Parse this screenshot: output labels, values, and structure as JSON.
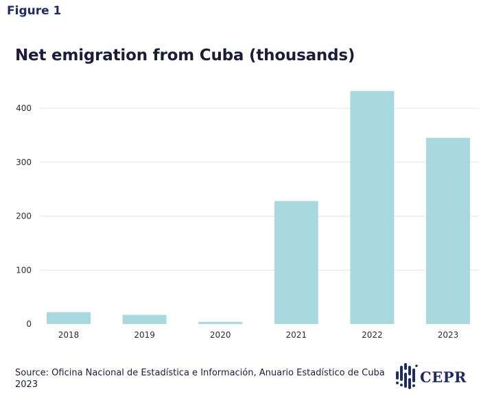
{
  "figure_label": "Figure 1",
  "source_text": "Source: Oficina Nacional de Estadística e Información, Anuario Estadístico de Cuba 2023",
  "logo": {
    "text": "CEPR",
    "icon": "cepr-dots-logo-icon"
  },
  "colors": {
    "bar": "#a8d9de",
    "grid": "#e6e6e6",
    "text": "#1b1b3a",
    "label": "#1f2a6b"
  },
  "chart_data": {
    "type": "bar",
    "title": "Net emigration from Cuba (thousands)",
    "xlabel": "",
    "ylabel": "",
    "categories": [
      "2018",
      "2019",
      "2020",
      "2021",
      "2022",
      "2023"
    ],
    "values": [
      22,
      17,
      4,
      228,
      432,
      345
    ],
    "ylim": [
      0,
      440
    ],
    "yticks": [
      0,
      100,
      200,
      300,
      400
    ],
    "grid": true,
    "legend": "none"
  }
}
